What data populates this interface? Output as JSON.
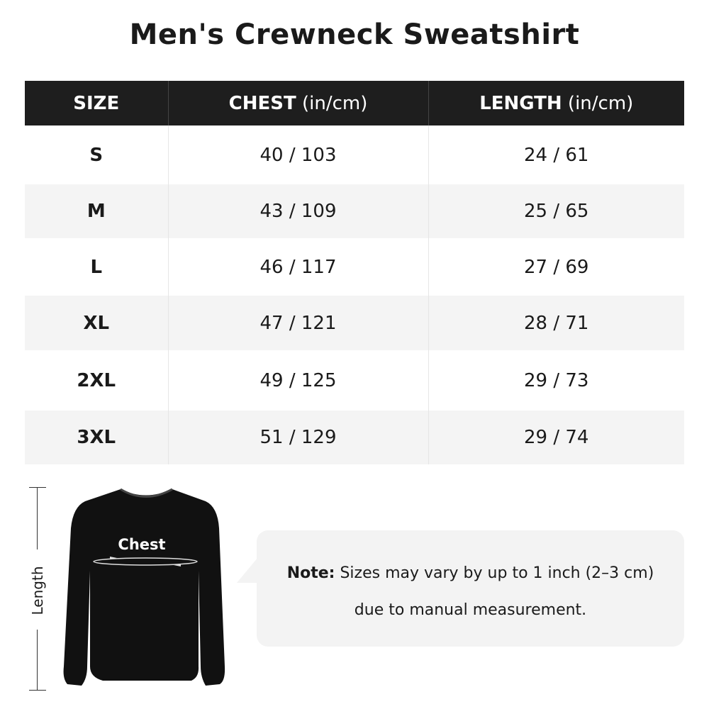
{
  "title": "Men's Crewneck Sweatshirt",
  "table": {
    "headers": [
      {
        "label": "SIZE",
        "unit": ""
      },
      {
        "label": "CHEST",
        "unit": " (in/cm)"
      },
      {
        "label": "LENGTH",
        "unit": " (in/cm)"
      }
    ],
    "rows": [
      {
        "size": "S",
        "chest": "40 / 103",
        "length": "24 / 61"
      },
      {
        "size": "M",
        "chest": "43 / 109",
        "length": "25 / 65"
      },
      {
        "size": "L",
        "chest": "46 / 117",
        "length": "27 / 69"
      },
      {
        "size": "XL",
        "chest": "47 / 121",
        "length": "28 / 71"
      },
      {
        "size": "2XL",
        "chest": "49 / 125",
        "length": "29 / 73"
      },
      {
        "size": "3XL",
        "chest": "51 / 129",
        "length": "29 / 74"
      }
    ]
  },
  "diagram": {
    "length_label": "Length",
    "chest_label": "Chest"
  },
  "note": {
    "prefix": "Note:",
    "line1": " Sizes may vary by up to 1 inch (2–3 cm)",
    "line2": "due to manual measurement."
  }
}
